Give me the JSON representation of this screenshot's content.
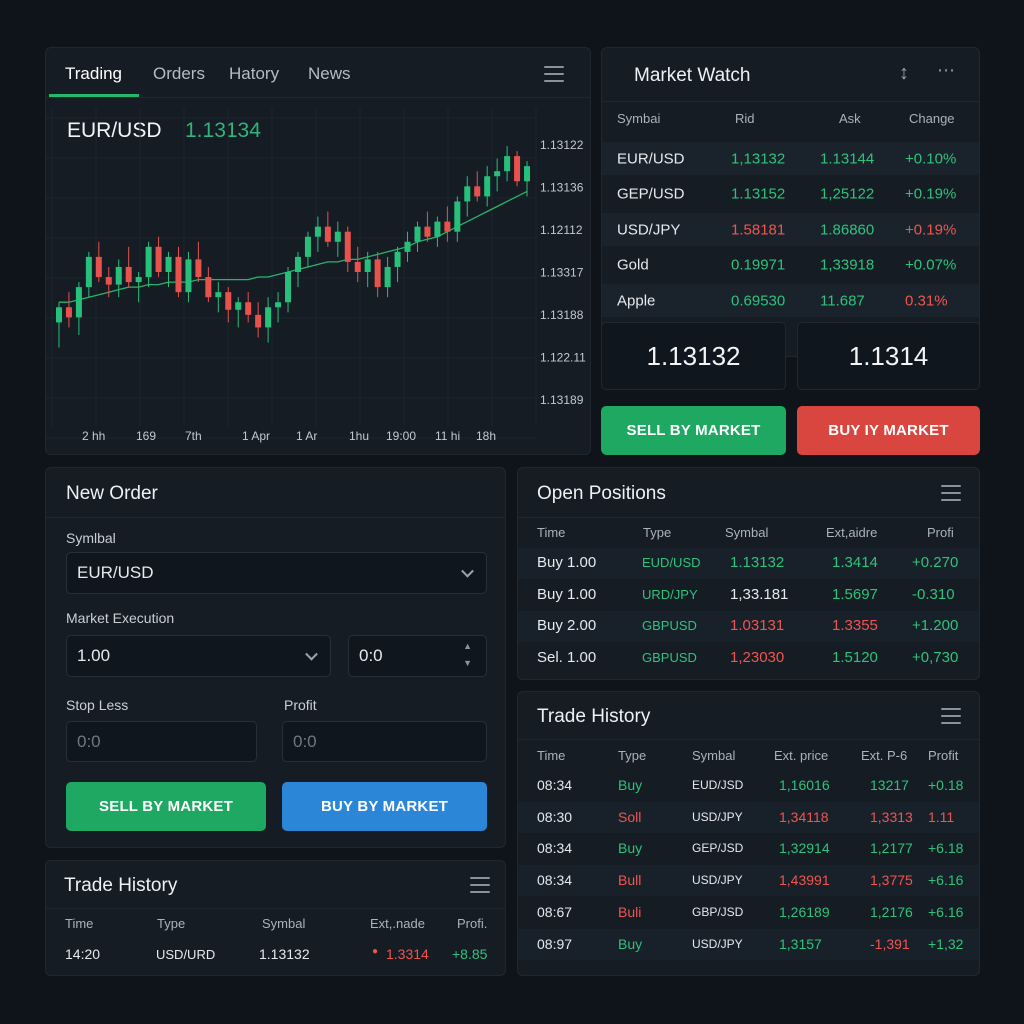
{
  "chart_panel": {
    "tabs": [
      "Trading",
      "Orders",
      "Hatory",
      "News"
    ],
    "active_tab": "Trading",
    "pair": "EUR/USD",
    "price": "1.13134"
  },
  "chart_data": {
    "type": "candlestick",
    "y_tick_labels": [
      "1.13122",
      "1.13136",
      "1.12112",
      "1.13317",
      "1.13188",
      "1.122.11",
      "1.13189"
    ],
    "x_tick_labels": [
      "2 hh",
      "169",
      "7th",
      "1 Apr",
      "1 Ar",
      "1hu",
      "19:00",
      "11 hi",
      "18h"
    ],
    "up_color": "#27c07a",
    "down_color": "#e8524c",
    "ma_color": "#2bb36b",
    "grid": true,
    "scale_min": 0,
    "scale_max": 100,
    "candles": [
      {
        "o": 30,
        "h": 38,
        "l": 20,
        "c": 36
      },
      {
        "o": 36,
        "h": 42,
        "l": 28,
        "c": 32
      },
      {
        "o": 32,
        "h": 46,
        "l": 25,
        "c": 44
      },
      {
        "o": 44,
        "h": 58,
        "l": 40,
        "c": 56
      },
      {
        "o": 56,
        "h": 62,
        "l": 46,
        "c": 48
      },
      {
        "o": 48,
        "h": 52,
        "l": 40,
        "c": 45
      },
      {
        "o": 45,
        "h": 55,
        "l": 40,
        "c": 52
      },
      {
        "o": 52,
        "h": 60,
        "l": 44,
        "c": 46
      },
      {
        "o": 46,
        "h": 50,
        "l": 38,
        "c": 48
      },
      {
        "o": 48,
        "h": 62,
        "l": 44,
        "c": 60
      },
      {
        "o": 60,
        "h": 64,
        "l": 48,
        "c": 50
      },
      {
        "o": 50,
        "h": 58,
        "l": 44,
        "c": 56
      },
      {
        "o": 56,
        "h": 60,
        "l": 40,
        "c": 42
      },
      {
        "o": 42,
        "h": 58,
        "l": 38,
        "c": 55
      },
      {
        "o": 55,
        "h": 62,
        "l": 46,
        "c": 48
      },
      {
        "o": 48,
        "h": 52,
        "l": 38,
        "c": 40
      },
      {
        "o": 40,
        "h": 46,
        "l": 34,
        "c": 42
      },
      {
        "o": 42,
        "h": 44,
        "l": 30,
        "c": 35
      },
      {
        "o": 35,
        "h": 40,
        "l": 28,
        "c": 38
      },
      {
        "o": 38,
        "h": 42,
        "l": 30,
        "c": 33
      },
      {
        "o": 33,
        "h": 38,
        "l": 24,
        "c": 28
      },
      {
        "o": 28,
        "h": 40,
        "l": 22,
        "c": 36
      },
      {
        "o": 36,
        "h": 42,
        "l": 30,
        "c": 38
      },
      {
        "o": 38,
        "h": 52,
        "l": 34,
        "c": 50
      },
      {
        "o": 50,
        "h": 58,
        "l": 44,
        "c": 56
      },
      {
        "o": 56,
        "h": 66,
        "l": 52,
        "c": 64
      },
      {
        "o": 64,
        "h": 72,
        "l": 58,
        "c": 68
      },
      {
        "o": 68,
        "h": 74,
        "l": 60,
        "c": 62
      },
      {
        "o": 62,
        "h": 70,
        "l": 56,
        "c": 66
      },
      {
        "o": 66,
        "h": 68,
        "l": 50,
        "c": 54
      },
      {
        "o": 54,
        "h": 60,
        "l": 46,
        "c": 50
      },
      {
        "o": 50,
        "h": 58,
        "l": 44,
        "c": 55
      },
      {
        "o": 55,
        "h": 58,
        "l": 40,
        "c": 44
      },
      {
        "o": 44,
        "h": 56,
        "l": 40,
        "c": 52
      },
      {
        "o": 52,
        "h": 60,
        "l": 46,
        "c": 58
      },
      {
        "o": 58,
        "h": 66,
        "l": 54,
        "c": 62
      },
      {
        "o": 62,
        "h": 70,
        "l": 58,
        "c": 68
      },
      {
        "o": 68,
        "h": 74,
        "l": 62,
        "c": 64
      },
      {
        "o": 64,
        "h": 72,
        "l": 60,
        "c": 70
      },
      {
        "o": 70,
        "h": 76,
        "l": 62,
        "c": 66
      },
      {
        "o": 66,
        "h": 80,
        "l": 62,
        "c": 78
      },
      {
        "o": 78,
        "h": 88,
        "l": 72,
        "c": 84
      },
      {
        "o": 84,
        "h": 90,
        "l": 78,
        "c": 80
      },
      {
        "o": 80,
        "h": 92,
        "l": 76,
        "c": 88
      },
      {
        "o": 88,
        "h": 95,
        "l": 82,
        "c": 90
      },
      {
        "o": 90,
        "h": 100,
        "l": 86,
        "c": 96
      },
      {
        "o": 96,
        "h": 98,
        "l": 84,
        "c": 86
      },
      {
        "o": 86,
        "h": 94,
        "l": 80,
        "c": 92
      }
    ],
    "moving_average": [
      38,
      38,
      39,
      40,
      41,
      42,
      43,
      44,
      44,
      45,
      45,
      46,
      46,
      46,
      47,
      47,
      47,
      47,
      47,
      47,
      48,
      48,
      49,
      50,
      51,
      52,
      53,
      54,
      54,
      55,
      55,
      56,
      57,
      58,
      59,
      60,
      62,
      63,
      64,
      66,
      68,
      70,
      72,
      74,
      76,
      78,
      80,
      82
    ]
  },
  "market_watch": {
    "title": "Market Watch",
    "columns": [
      "Symbai",
      "Rid",
      "Ask",
      "Change"
    ],
    "rows": [
      {
        "symbol": "EUR/USD",
        "bid": "1,13132",
        "ask": "1.13144",
        "change": "+0.10%",
        "bid_color": "green",
        "change_color": "green"
      },
      {
        "symbol": "GEP/USD",
        "bid": "1.13152",
        "ask": "1,25122",
        "change": "+0.19%",
        "bid_color": "green",
        "change_color": "green"
      },
      {
        "symbol": "USD/JPY",
        "bid": "1.58181",
        "ask": "1.86860",
        "change": "+0.19%",
        "bid_color": "red",
        "change_color": "red"
      },
      {
        "symbol": "Gold",
        "bid": "0.19971",
        "ask": "1,33918",
        "change": "+0.07%",
        "bid_color": "green",
        "change_color": "green"
      },
      {
        "symbol": "Apple",
        "bid": "0.69530",
        "ask": "11.687",
        "change": "0.31%",
        "bid_color": "green",
        "change_color": "red"
      }
    ],
    "sell_price": "1.13132",
    "buy_price": "1.1314",
    "sell_label": "SELL BY MARKET",
    "buy_label": "BUY IY MARKET"
  },
  "new_order": {
    "title": "New Order",
    "symbol_label": "Symlbal",
    "symbol_value": "EUR/USD",
    "execution_label": "Market Execution",
    "volume_value": "1.00",
    "deviation_value": "0:0",
    "stop_loss_label": "Stop Less",
    "stop_loss_placeholder": "0:0",
    "profit_label": "Profit",
    "profit_placeholder": "0:0",
    "sell_label": "SELL BY MARKET",
    "buy_label": "BUY BY MARKET"
  },
  "open_positions": {
    "title": "Open Positions",
    "columns": [
      "Time",
      "Type",
      "Symbal",
      "Ext,aidre",
      "Profi"
    ],
    "rows": [
      {
        "time": "Buy 1.00",
        "type": "EUD/USD",
        "symbol": "1.13132",
        "ext": "1.3414",
        "profit": "+0.270",
        "type_color": "green",
        "symbol_color": "green",
        "ext_color": "green",
        "profit_color": "green"
      },
      {
        "time": "Buy 1.00",
        "type": "URD/JPY",
        "symbol": "1,33.181",
        "ext": "1.5697",
        "profit": "-0.310",
        "type_color": "green",
        "symbol_color": "white",
        "ext_color": "green",
        "profit_color": "green"
      },
      {
        "time": "Buy 2.00",
        "type": "GBPUSD",
        "symbol": "1.03131",
        "ext": "1.3355",
        "profit": "+1.200",
        "type_color": "green",
        "symbol_color": "red",
        "ext_color": "red",
        "profit_color": "green"
      },
      {
        "time": "Sel. 1.00",
        "type": "GBPUSD",
        "symbol": "1,23030",
        "ext": "1.5120",
        "profit": "+0,730",
        "type_color": "green",
        "symbol_color": "red",
        "ext_color": "green",
        "profit_color": "green"
      }
    ]
  },
  "trade_history_right": {
    "title": "Trade History",
    "columns": [
      "Time",
      "Type",
      "Symbal",
      "Ext. price",
      "Ext. P-6",
      "Profit"
    ],
    "rows": [
      {
        "time": "08:34",
        "type": "Buy",
        "symbol": "EUD/JSD",
        "price": "1,16016",
        "ext": "13217",
        "profit": "+0.18",
        "type_color": "green",
        "price_color": "green",
        "ext_color": "green",
        "profit_color": "green"
      },
      {
        "time": "08:30",
        "type": "Soll",
        "symbol": "USD/JPY",
        "price": "1,34118",
        "ext": "1,3313",
        "profit": "1.11",
        "type_color": "red",
        "price_color": "red",
        "ext_color": "red",
        "profit_color": "red"
      },
      {
        "time": "08:34",
        "type": "Buy",
        "symbol": "GEP/JSD",
        "price": "1,32914",
        "ext": "1,2177",
        "profit": "+6.18",
        "type_color": "green",
        "price_color": "green",
        "ext_color": "green",
        "profit_color": "green"
      },
      {
        "time": "08:34",
        "type": "Bull",
        "symbol": "USD/JPY",
        "price": "1,43991",
        "ext": "1,3775",
        "profit": "+6.16",
        "type_color": "red",
        "price_color": "red",
        "ext_color": "red",
        "profit_color": "green"
      },
      {
        "time": "08:67",
        "type": "Buli",
        "symbol": "GBP/JSD",
        "price": "1,26189",
        "ext": "1,2176",
        "profit": "+6.16",
        "type_color": "red",
        "price_color": "green",
        "ext_color": "green",
        "profit_color": "green"
      },
      {
        "time": "08:97",
        "type": "Buy",
        "symbol": "USD/JPY",
        "price": "1,3157",
        "ext": "-1,391",
        "profit": "+1,32",
        "type_color": "green",
        "price_color": "green",
        "ext_color": "red",
        "profit_color": "green"
      }
    ]
  },
  "trade_history_left": {
    "title": "Trade History",
    "columns": [
      "Time",
      "Type",
      "Symbal",
      "Ext,.nade",
      "Profi."
    ],
    "rows": [
      {
        "time": "14:20",
        "type": "USD/URD",
        "symbol": "1.13132",
        "ext": "1.3314",
        "profit": "+8.85"
      }
    ]
  }
}
